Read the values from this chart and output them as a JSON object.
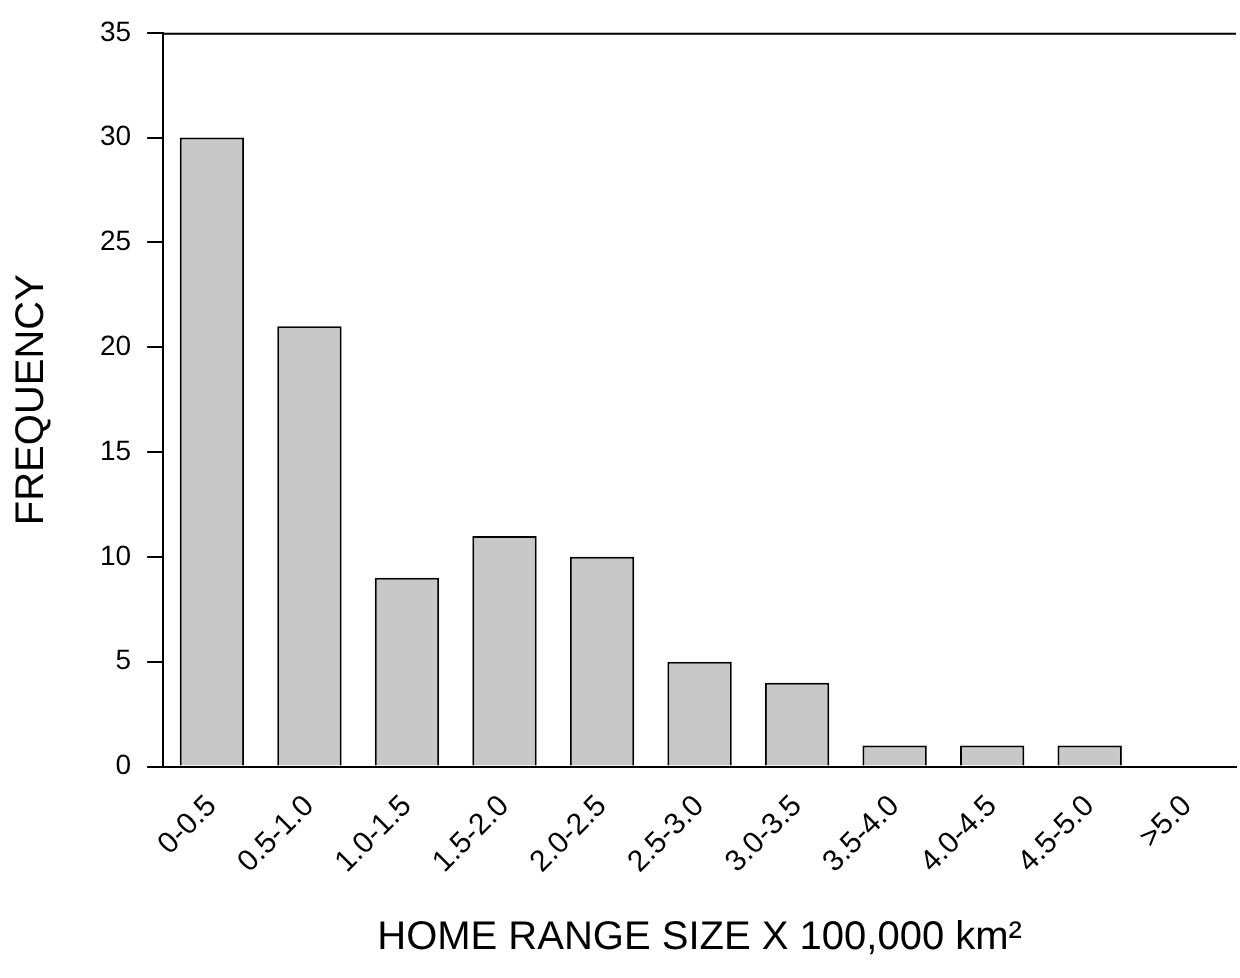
{
  "chart_data": {
    "type": "bar",
    "xlabel": "HOME RANGE SIZE X 100,000 km²",
    "ylabel": "FREQUENCY",
    "categories": [
      "0-0.5",
      "0.5-1.0",
      "1.0-1.5",
      "1.5-2.0",
      "2.0-2.5",
      "2.5-3.0",
      "3.0-3.5",
      "3.5-4.0",
      "4.0-4.5",
      "4.5-5.0",
      ">5.0"
    ],
    "values": [
      30,
      21,
      9,
      11,
      10,
      5,
      4,
      1,
      1,
      1,
      0
    ],
    "color": "#c8c8c8",
    "ylim": [
      0,
      35
    ],
    "yticks": [
      0,
      5,
      10,
      15,
      20,
      25,
      30,
      35
    ],
    "grid": false,
    "legend": false
  }
}
